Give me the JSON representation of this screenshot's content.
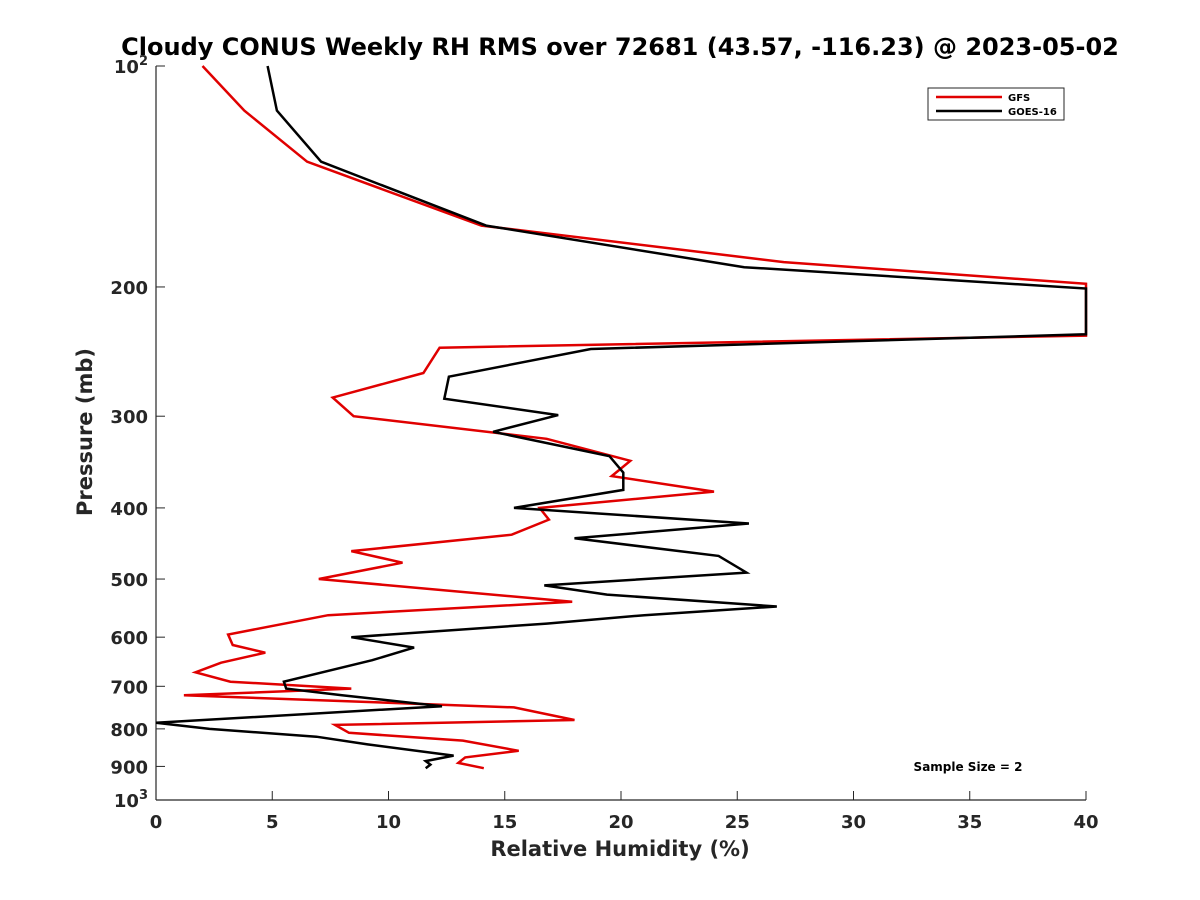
{
  "chart_data": {
    "type": "line",
    "title": "Cloudy CONUS Weekly RH RMS over 72681 (43.57, -116.23) @ 2023-05-02",
    "xlabel": "Relative Humidity (%)",
    "ylabel": "Pressure (mb)",
    "xlim": [
      0,
      40
    ],
    "ylim": [
      100,
      1000
    ],
    "y_scale": "log",
    "y_reversed": true,
    "x_ticks": [
      "0",
      "5",
      "10",
      "15",
      "20",
      "25",
      "30",
      "35",
      "40"
    ],
    "y_ticks": [
      {
        "value": 100,
        "base": "10",
        "exp": "2"
      },
      {
        "value": 200,
        "label": "200"
      },
      {
        "value": 300,
        "label": "300"
      },
      {
        "value": 400,
        "label": "400"
      },
      {
        "value": 500,
        "label": "500"
      },
      {
        "value": 600,
        "label": "600"
      },
      {
        "value": 700,
        "label": "700"
      },
      {
        "value": 800,
        "label": "800"
      },
      {
        "value": 900,
        "label": "900"
      },
      {
        "value": 1000,
        "base": "10",
        "exp": "3"
      }
    ],
    "grid": false,
    "legend": {
      "placement": "top-right",
      "entries": [
        "GFS",
        "GOES-16"
      ]
    },
    "annotation": "Sample Size = 2",
    "series": [
      {
        "name": "GFS",
        "color": "#e00000",
        "x": [
          2.0,
          3.8,
          6.5,
          14.0,
          27.0,
          40.0,
          40.0,
          12.2,
          11.5,
          7.6,
          8.5,
          16.8,
          20.4,
          19.6,
          24.0,
          16.5,
          16.9,
          15.3,
          8.4,
          10.6,
          7.0,
          17.9,
          7.4,
          3.1,
          3.3,
          4.7,
          2.8,
          1.7,
          3.2,
          8.4,
          1.2,
          15.4,
          18.0,
          7.7,
          8.3,
          13.2,
          15.6,
          13.3,
          13.0,
          14.1
        ],
        "y": [
          100,
          115,
          135,
          165,
          185,
          198,
          233,
          242,
          262,
          283,
          300,
          322,
          345,
          362,
          380,
          400,
          415,
          435,
          458,
          475,
          500,
          537,
          560,
          595,
          615,
          630,
          650,
          670,
          690,
          705,
          720,
          748,
          778,
          790,
          810,
          830,
          857,
          875,
          890,
          905
        ]
      },
      {
        "name": "GOES-16",
        "color": "#000000",
        "x": [
          4.8,
          5.2,
          7.1,
          14.2,
          25.3,
          40.0,
          40.0,
          18.7,
          12.6,
          12.4,
          17.3,
          14.5,
          19.5,
          20.1,
          20.1,
          15.4,
          25.5,
          18.0,
          24.2,
          25.4,
          16.7,
          19.4,
          26.7,
          21.0,
          16.8,
          8.4,
          11.1,
          9.3,
          5.5,
          5.6,
          8.0,
          12.3,
          0.0,
          2.3,
          6.9,
          9.1,
          12.8,
          11.6,
          11.8,
          11.6
        ],
        "y": [
          100,
          115,
          135,
          165,
          188,
          201,
          232,
          243,
          265,
          284,
          299,
          315,
          340,
          358,
          378,
          400,
          420,
          440,
          465,
          490,
          510,
          525,
          545,
          560,
          575,
          600,
          620,
          645,
          690,
          705,
          720,
          745,
          785,
          800,
          820,
          840,
          870,
          885,
          895,
          905
        ]
      }
    ]
  }
}
